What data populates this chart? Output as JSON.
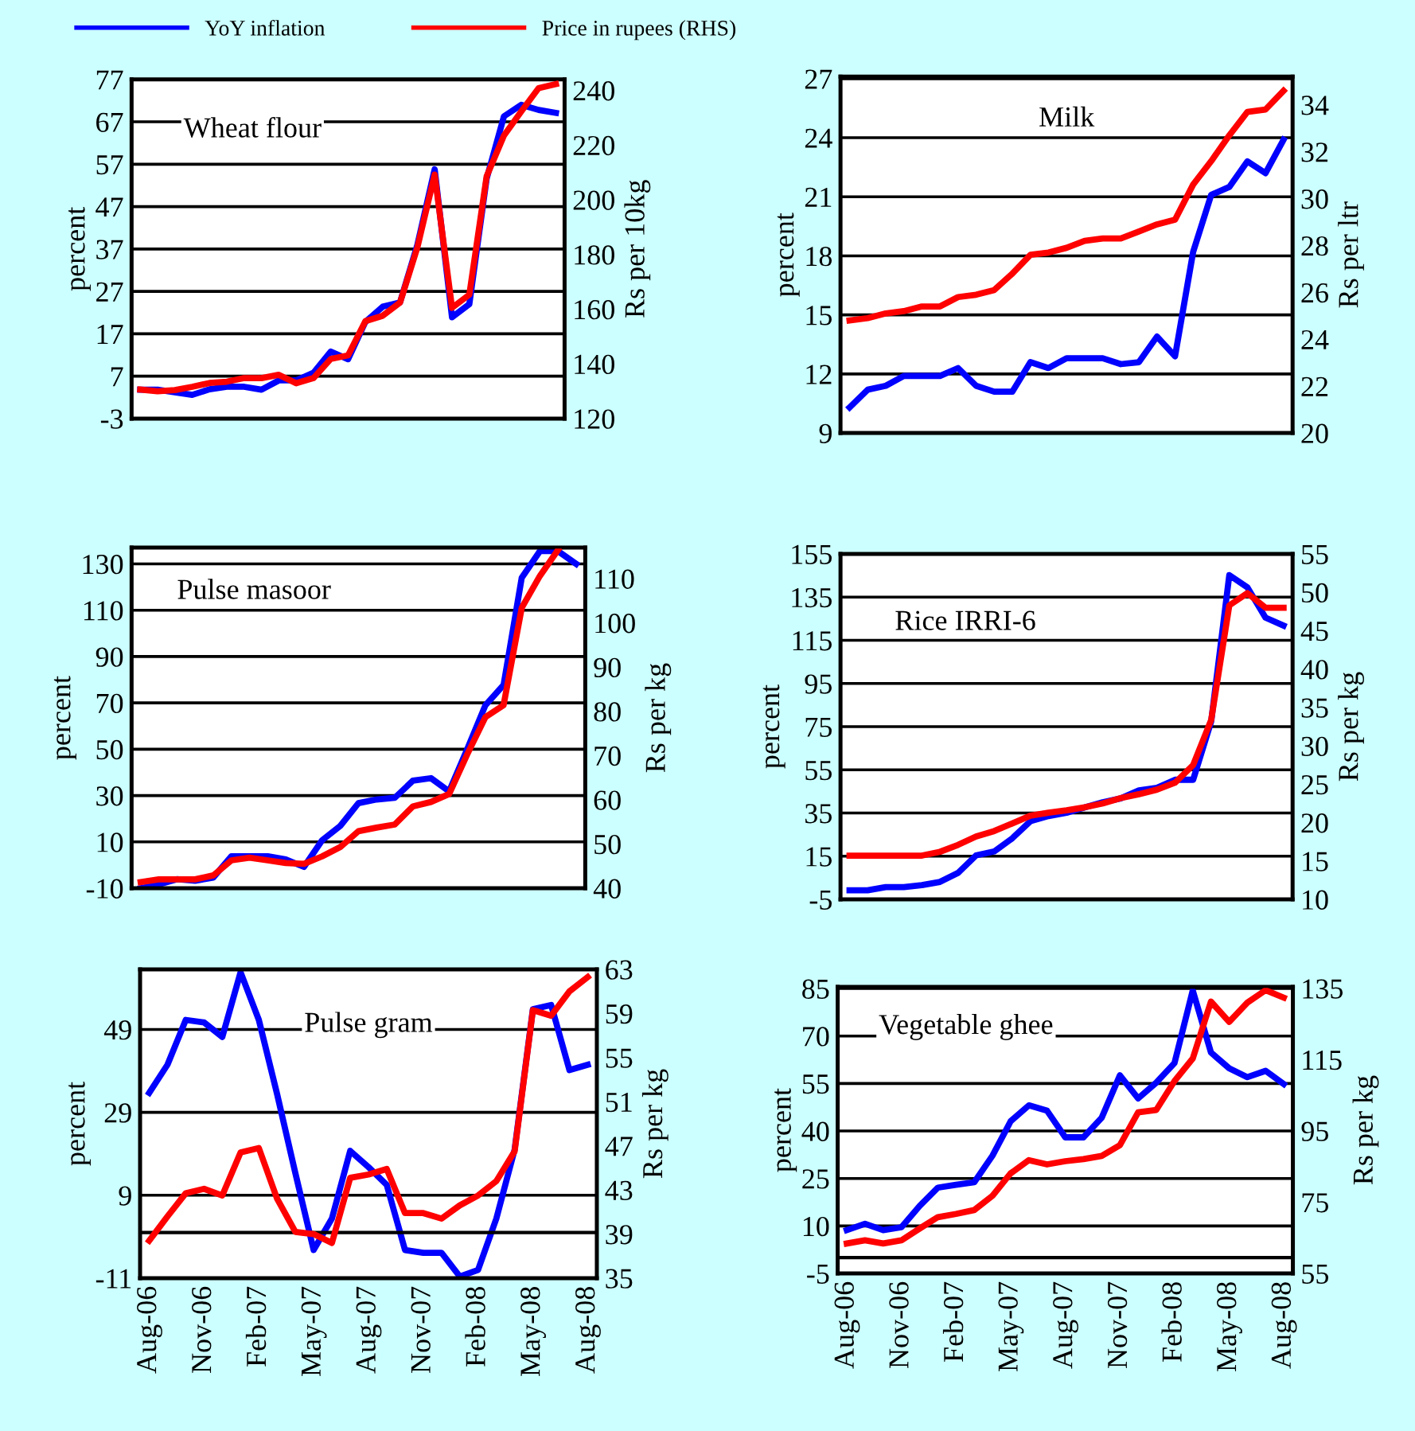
{
  "chart_data": [
    {
      "type": "line",
      "title": "Wheat flour",
      "ylabel": "percent",
      "y2label": "Rs per 10kg",
      "legend": "top",
      "grid": "y",
      "categories": [
        null,
        null,
        null,
        null,
        null,
        null,
        null,
        null,
        null,
        null,
        null,
        null,
        null,
        null,
        null,
        null,
        null,
        null,
        null,
        null,
        null,
        null,
        null,
        null,
        null
      ],
      "ylim": [
        -3,
        77
      ],
      "yticks": [
        -3,
        7,
        17,
        27,
        37,
        47,
        57,
        67,
        77
      ],
      "y2lim": [
        120,
        244
      ],
      "y2ticks": [
        120,
        140,
        160,
        180,
        200,
        220,
        240
      ],
      "series": [
        {
          "name": "YoY inflation",
          "color": "#0000ff",
          "values": [
            3.8,
            3.8,
            3.2,
            2.6,
            3.9,
            4.5,
            4.5,
            3.8,
            6,
            6,
            7.8,
            12.8,
            11,
            19.8,
            23.4,
            24.4,
            38,
            55.8,
            20.9,
            24,
            53.6,
            68.3,
            71,
            69.8,
            69.1
          ]
        },
        {
          "name": "Price in rupees (RHS)",
          "color": "#ff0000",
          "axis": "y2",
          "values": [
            130.6,
            130,
            130.4,
            131.6,
            133,
            133.5,
            134.8,
            134.8,
            136,
            132.9,
            134.8,
            141.8,
            143.1,
            155.6,
            157.6,
            162.4,
            182.6,
            209.2,
            160.5,
            165.3,
            208.6,
            223.5,
            232.3,
            240.8,
            242.3
          ]
        }
      ]
    },
    {
      "type": "line",
      "title": "Milk",
      "ylabel": "percent",
      "y2label": "Rs per ltr",
      "grid": "y",
      "categories": [
        null,
        null,
        null,
        null,
        null,
        null,
        null,
        null,
        null,
        null,
        null,
        null,
        null,
        null,
        null,
        null,
        null,
        null,
        null,
        null,
        null,
        null,
        null,
        null,
        null
      ],
      "ylim": [
        9,
        27.1
      ],
      "yticks": [
        9,
        12,
        15,
        18,
        21,
        24,
        27
      ],
      "y2lim": [
        20,
        35.2
      ],
      "y2ticks": [
        20,
        22,
        24,
        26,
        28,
        30,
        32,
        34
      ],
      "series": [
        {
          "color": "#0000ff",
          "values": [
            10.3,
            11.2,
            11.4,
            11.9,
            11.9,
            11.9,
            12.3,
            11.4,
            11.1,
            11.1,
            12.6,
            12.3,
            12.8,
            12.8,
            12.8,
            12.5,
            12.6,
            13.9,
            12.9,
            18.2,
            21.1,
            21.5,
            22.8,
            22.2,
            23.9
          ]
        },
        {
          "color": "#ff0000",
          "axis": "y2",
          "values": [
            24.8,
            24.9,
            25.1,
            25.2,
            25.4,
            25.4,
            25.8,
            25.9,
            26.1,
            26.8,
            27.6,
            27.7,
            27.9,
            28.2,
            28.3,
            28.3,
            28.6,
            28.9,
            29.1,
            30.6,
            31.6,
            32.7,
            33.7,
            33.8,
            34.6
          ]
        }
      ]
    },
    {
      "type": "line",
      "title": "Pulse masoor",
      "ylabel": "percent",
      "y2label": "Rs per kg",
      "grid": "y",
      "categories": [
        null,
        null,
        null,
        null,
        null,
        null,
        null,
        null,
        null,
        null,
        null,
        null,
        null,
        null,
        null,
        null,
        null,
        null,
        null,
        null,
        null,
        null,
        null,
        null,
        null
      ],
      "ylim": [
        -10,
        137
      ],
      "yticks": [
        -10,
        10,
        30,
        50,
        70,
        90,
        110,
        130
      ],
      "y2lim": [
        40,
        117
      ],
      "y2ticks": [
        40,
        50,
        60,
        70,
        80,
        90,
        100,
        110
      ],
      "series": [
        {
          "color": "#0000ff",
          "values": [
            -10,
            -8.4,
            -6.1,
            -6.8,
            -5.4,
            3.8,
            3.8,
            3.8,
            2.4,
            -0.8,
            10.7,
            16.9,
            26.7,
            28.3,
            29,
            36.4,
            37.5,
            31.8,
            50.1,
            69,
            77.7,
            124,
            135.5,
            135.5,
            130
          ]
        },
        {
          "color": "#ff0000",
          "axis": "y2",
          "values": [
            41.4,
            42,
            42,
            42,
            42.9,
            46.3,
            46.9,
            46.3,
            45.7,
            45.5,
            47.2,
            49.3,
            52.9,
            53.7,
            54.4,
            58.5,
            59.5,
            61.3,
            70.3,
            78.7,
            81.4,
            103.4,
            110.6,
            116.5,
            null
          ]
        }
      ]
    },
    {
      "type": "line",
      "title": "Rice IRRI-6",
      "ylabel": "percent",
      "y2label": "Rs per kg",
      "grid": "y",
      "categories": [
        null,
        null,
        null,
        null,
        null,
        null,
        null,
        null,
        null,
        null,
        null,
        null,
        null,
        null,
        null,
        null,
        null,
        null,
        null,
        null,
        null,
        null,
        null,
        null,
        null
      ],
      "ylim": [
        -5,
        155
      ],
      "yticks": [
        -5,
        15,
        35,
        55,
        75,
        95,
        115,
        135,
        155
      ],
      "y2lim": [
        10,
        55
      ],
      "y2ticks": [
        10,
        15,
        20,
        25,
        30,
        35,
        40,
        45,
        50,
        55
      ],
      "series": [
        {
          "color": "#0000ff",
          "values": [
            -0.8,
            -0.8,
            0.7,
            0.7,
            1.6,
            3.1,
            7.3,
            15.4,
            17.2,
            23.3,
            31.2,
            33.6,
            35.1,
            37.6,
            40,
            41.8,
            45.5,
            46.7,
            50.4,
            50.4,
            77.5,
            145.2,
            139.5,
            125.5,
            121.8
          ]
        },
        {
          "color": "#ff0000",
          "axis": "y2",
          "values": [
            15.7,
            15.7,
            15.7,
            15.7,
            15.7,
            16.2,
            17.1,
            18.2,
            18.9,
            19.9,
            20.9,
            21.3,
            21.6,
            22,
            22.5,
            23.2,
            23.7,
            24.3,
            25.2,
            27.5,
            33.4,
            48.3,
            49.9,
            48,
            48
          ]
        }
      ]
    },
    {
      "type": "line",
      "title": "Pulse gram",
      "ylabel": "percent",
      "y2label": "Rs per kg",
      "grid": "y",
      "categories": [
        "Aug-06",
        null,
        null,
        "Nov-06",
        null,
        null,
        "Feb-07",
        null,
        null,
        "May-07",
        null,
        null,
        "Aug-07",
        null,
        null,
        "Nov-07",
        null,
        null,
        "Feb-08",
        null,
        null,
        "May-08",
        null,
        null,
        "Aug-08"
      ],
      "ylim": [
        -11,
        63.5
      ],
      "yticks": [
        -11,
        9,
        29,
        49
      ],
      "y2lim": [
        35,
        63
      ],
      "y2ticks": [
        35,
        39,
        43,
        47,
        51,
        55,
        59,
        63
      ],
      "ref_lines": [
        {
          "axis": "y",
          "value": 0,
          "color": "#000000"
        }
      ],
      "series": [
        {
          "color": "#0000ff",
          "values": [
            33.7,
            40.5,
            51.3,
            50.7,
            47.2,
            62.8,
            51.3,
            33.4,
            14.3,
            -4.2,
            3.4,
            19.7,
            15.8,
            11.5,
            -4.2,
            -4.9,
            -4.9,
            -10.6,
            -9,
            3.4,
            20,
            53.9,
            54.9,
            39.2,
            40.5
          ]
        },
        {
          "color": "#ff0000",
          "axis": "y2",
          "values": [
            38.4,
            40.6,
            42.7,
            43.1,
            42.5,
            46.4,
            46.8,
            42.2,
            39.2,
            39,
            38.2,
            44.1,
            44.4,
            44.9,
            40.9,
            40.9,
            40.4,
            41.6,
            42.5,
            43.8,
            46.5,
            59.3,
            58.8,
            61,
            62.3
          ]
        }
      ]
    },
    {
      "type": "line",
      "title": "Vegetable ghee",
      "ylabel": "percent",
      "y2label": "Rs per kg",
      "grid": "y",
      "categories": [
        "Aug-06",
        null,
        null,
        "Nov-06",
        null,
        null,
        "Feb-07",
        null,
        null,
        "May-07",
        null,
        null,
        "Aug-07",
        null,
        null,
        "Nov-07",
        null,
        null,
        "Feb-08",
        null,
        null,
        "May-08",
        null,
        null,
        "Aug-08"
      ],
      "ylim": [
        -5,
        85.5
      ],
      "yticks": [
        -5,
        10,
        25,
        40,
        55,
        70,
        85
      ],
      "y2lim": [
        55,
        135.4
      ],
      "y2ticks": [
        55,
        75,
        95,
        115,
        135
      ],
      "ref_lines": [
        {
          "axis": "y",
          "value": 0,
          "color": "#000000"
        }
      ],
      "series": [
        {
          "color": "#0000ff",
          "values": [
            8.7,
            10.7,
            8.7,
            9.6,
            16.3,
            22.1,
            23,
            23.8,
            32.2,
            43.1,
            48.1,
            46.4,
            38,
            38,
            44.2,
            57.6,
            50.3,
            55.3,
            61.5,
            84.4,
            64.8,
            59.8,
            57,
            59,
            54.8
          ]
        },
        {
          "color": "#ff0000",
          "axis": "y2",
          "values": [
            63.4,
            64.3,
            63.4,
            64.3,
            67.6,
            70.8,
            71.7,
            72.8,
            76.8,
            83.1,
            86.8,
            85.6,
            86.5,
            87.1,
            88,
            91,
            100.2,
            100.9,
            109,
            115.3,
            131.3,
            125.6,
            131,
            134.5,
            132.4
          ]
        }
      ]
    }
  ]
}
